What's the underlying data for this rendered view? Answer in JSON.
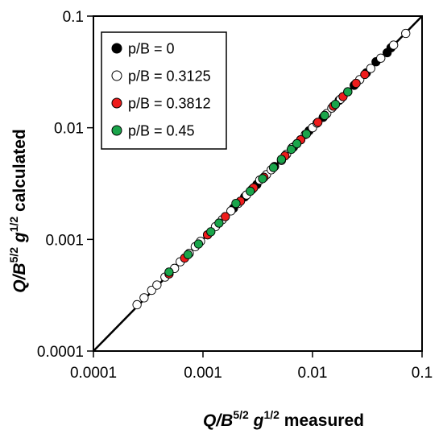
{
  "chart_data": {
    "type": "scatter",
    "x_scale": "log",
    "y_scale": "log",
    "xlim": [
      0.0001,
      0.1
    ],
    "ylim": [
      0.0001,
      0.1
    ],
    "x_ticks": [
      "0.0001",
      "0.001",
      "0.01",
      "0.1"
    ],
    "y_ticks": [
      "0.0001",
      "0.001",
      "0.01",
      "0.1"
    ],
    "xlabel": {
      "main": "Q/B",
      "sup1": "5/2",
      "mid": " g",
      "sup2": "1/2",
      "suffix": " measured"
    },
    "ylabel": {
      "main": "Q/B",
      "sup1": "5/2",
      "mid": " g",
      "sup2": "1/2",
      "suffix": " calculated"
    },
    "reference_line": "y = x",
    "grid": false,
    "legend_position": "top-left",
    "series": [
      {
        "name": "p/B = 0",
        "color": "#000000",
        "points": [
          [
            0.0019,
            0.0019
          ],
          [
            0.0024,
            0.0024
          ],
          [
            0.0031,
            0.0031
          ],
          [
            0.0045,
            0.0045
          ],
          [
            0.0067,
            0.0067
          ],
          [
            0.0093,
            0.0094
          ],
          [
            0.0125,
            0.0124
          ],
          [
            0.0175,
            0.0176
          ],
          [
            0.024,
            0.024
          ],
          [
            0.031,
            0.031
          ],
          [
            0.038,
            0.039
          ],
          [
            0.048,
            0.047
          ],
          [
            0.052,
            0.052
          ]
        ]
      },
      {
        "name": "p/B = 0.3125",
        "color": "#ffffff",
        "points": [
          [
            0.00025,
            0.00026
          ],
          [
            0.00029,
            0.0003
          ],
          [
            0.00034,
            0.00035
          ],
          [
            0.00038,
            0.00039
          ],
          [
            0.00045,
            0.00046
          ],
          [
            0.00055,
            0.00055
          ],
          [
            0.00062,
            0.00063
          ],
          [
            0.00075,
            0.00075
          ],
          [
            0.00085,
            0.00086
          ],
          [
            0.00095,
            0.00096
          ],
          [
            0.0011,
            0.0011
          ],
          [
            0.0013,
            0.0013
          ],
          [
            0.0015,
            0.0015
          ],
          [
            0.0018,
            0.0018
          ],
          [
            0.0021,
            0.0021
          ],
          [
            0.0025,
            0.0025
          ],
          [
            0.0028,
            0.0028
          ],
          [
            0.0033,
            0.0034
          ],
          [
            0.0038,
            0.0038
          ],
          [
            0.0042,
            0.0042
          ],
          [
            0.0052,
            0.0051
          ],
          [
            0.0058,
            0.0058
          ],
          [
            0.0065,
            0.0066
          ],
          [
            0.0078,
            0.0078
          ],
          [
            0.0086,
            0.0087
          ],
          [
            0.01,
            0.01
          ],
          [
            0.011,
            0.011
          ],
          [
            0.0135,
            0.0134
          ],
          [
            0.015,
            0.015
          ],
          [
            0.018,
            0.018
          ],
          [
            0.021,
            0.021
          ],
          [
            0.027,
            0.027
          ],
          [
            0.034,
            0.034
          ],
          [
            0.042,
            0.042
          ],
          [
            0.055,
            0.055
          ],
          [
            0.071,
            0.07
          ]
        ]
      },
      {
        "name": "p/B = 0.3812",
        "color": "#ee1c1c",
        "points": [
          [
            0.00049,
            0.00049
          ],
          [
            0.00068,
            0.00068
          ],
          [
            0.0011,
            0.0011
          ],
          [
            0.0016,
            0.0016
          ],
          [
            0.0022,
            0.0022
          ],
          [
            0.0029,
            0.0029
          ],
          [
            0.0036,
            0.0036
          ],
          [
            0.0056,
            0.0056
          ],
          [
            0.0078,
            0.0078
          ],
          [
            0.0112,
            0.0112
          ],
          [
            0.0155,
            0.0156
          ],
          [
            0.019,
            0.019
          ],
          [
            0.025,
            0.025
          ],
          [
            0.03,
            0.03
          ]
        ]
      },
      {
        "name": "p/B = 0.45",
        "color": "#1aa54b",
        "points": [
          [
            0.00049,
            0.00051
          ],
          [
            0.00073,
            0.00073
          ],
          [
            0.00091,
            0.00091
          ],
          [
            0.00118,
            0.00117
          ],
          [
            0.0014,
            0.0014
          ],
          [
            0.002,
            0.0021
          ],
          [
            0.0027,
            0.0027
          ],
          [
            0.0035,
            0.0035
          ],
          [
            0.0044,
            0.0044
          ],
          [
            0.0052,
            0.0052
          ],
          [
            0.0064,
            0.0064
          ],
          [
            0.0072,
            0.0072
          ],
          [
            0.0088,
            0.0088
          ],
          [
            0.0129,
            0.0129
          ],
          [
            0.0162,
            0.0162
          ],
          [
            0.021,
            0.021
          ]
        ]
      }
    ]
  }
}
